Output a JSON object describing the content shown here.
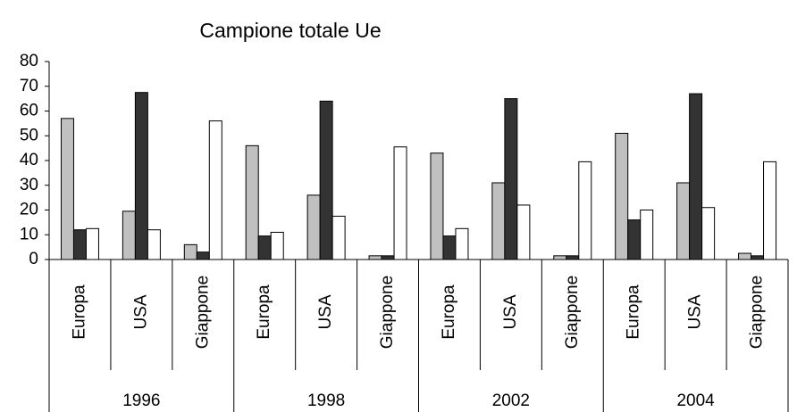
{
  "chart_data": {
    "type": "bar",
    "title": "Campione totale Ue",
    "categories": [
      "Europa",
      "USA",
      "Giappone",
      "Europa",
      "USA",
      "Giappone",
      "Europa",
      "USA",
      "Giappone",
      "Europa",
      "USA",
      "Giappone"
    ],
    "groups": [
      "1996",
      "1998",
      "2002",
      "2004"
    ],
    "series": [
      {
        "color": "#c0c0c0",
        "values": [
          57,
          19.5,
          6,
          46,
          26,
          1.5,
          43,
          31,
          1.5,
          51,
          31,
          2.5
        ]
      },
      {
        "color": "#333333",
        "values": [
          12,
          67.5,
          3,
          9.5,
          64,
          1.5,
          9.5,
          65,
          1.5,
          16,
          67,
          1.5
        ]
      },
      {
        "color": "#ffffff",
        "values": [
          12.5,
          12,
          56,
          11,
          17.5,
          45.5,
          12.5,
          22,
          39.5,
          20,
          21,
          39.5
        ]
      }
    ],
    "ylim": [
      0,
      80
    ],
    "yticks": [
      0,
      10,
      20,
      30,
      40,
      50,
      60,
      70,
      80
    ]
  }
}
